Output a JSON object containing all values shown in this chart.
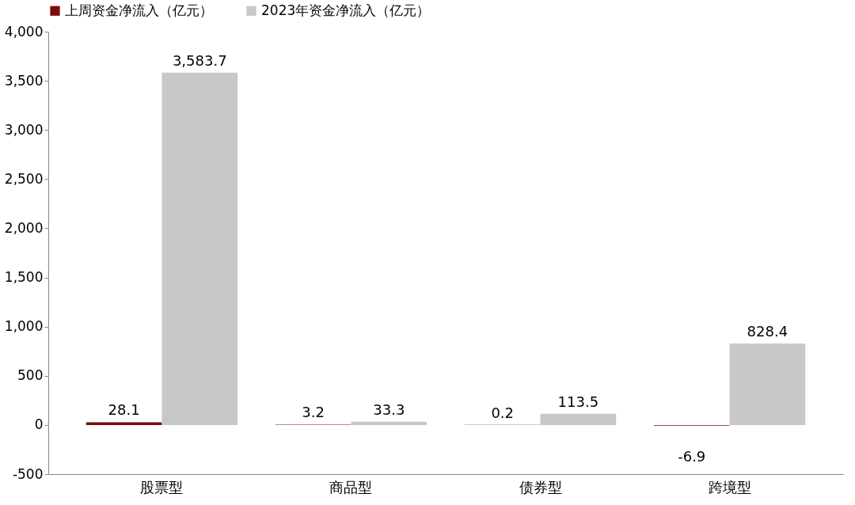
{
  "chart_data": {
    "type": "bar",
    "categories": [
      "股票型",
      "商品型",
      "债券型",
      "跨境型"
    ],
    "series": [
      {
        "name": "上周资金净流入（亿元）",
        "color": "#7b0c0c",
        "values": [
          28.1,
          3.2,
          0.2,
          -6.9
        ],
        "value_labels": [
          "28.1",
          "3.2",
          "0.2",
          "-6.9"
        ]
      },
      {
        "name": "2023年资金净流入（亿元）",
        "color": "#c8c8c8",
        "values": [
          3583.7,
          33.3,
          113.5,
          828.4
        ],
        "value_labels": [
          "3,583.7",
          "33.3",
          "113.5",
          "828.4"
        ]
      }
    ],
    "ylim": [
      -500,
      4000
    ],
    "yticks": [
      {
        "value": -500,
        "label": "-500"
      },
      0,
      500,
      {
        "value": 1000,
        "label": "1,000"
      },
      {
        "value": 1500,
        "label": "1,500"
      },
      {
        "value": 2000,
        "label": "2,000"
      },
      {
        "value": 2500,
        "label": "2,500"
      },
      {
        "value": 3000,
        "label": "3,000"
      },
      {
        "value": 3500,
        "label": "3,500"
      },
      {
        "value": 4000,
        "label": "4,000"
      }
    ],
    "legend": "top",
    "grid": false
  }
}
